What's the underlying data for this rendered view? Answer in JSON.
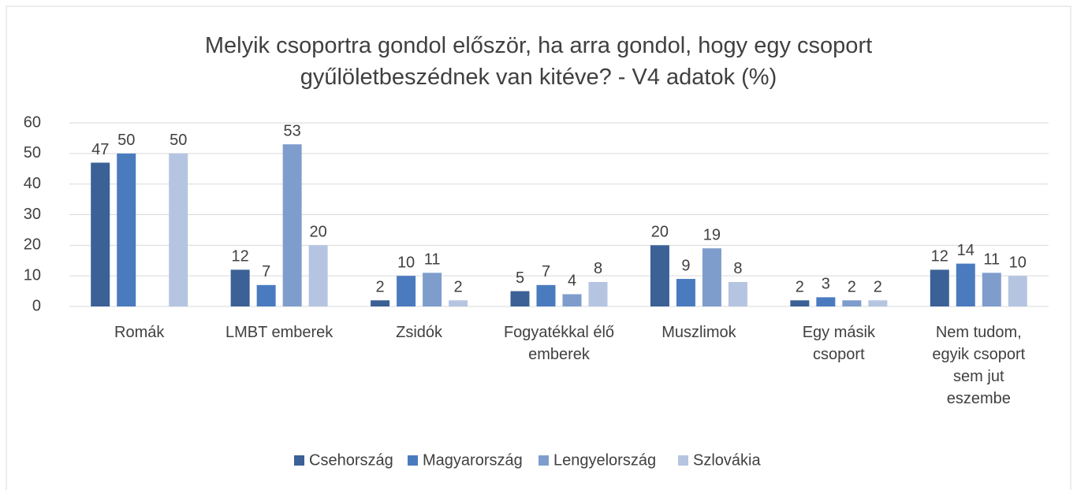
{
  "chart_data": {
    "type": "bar",
    "title": "Melyik csoportra gondol először, ha arra gondol, hogy egy csoport gyűlöletbeszédnek van kitéve? - V4 adatok (%)",
    "categories": [
      "Romák",
      "LMBT emberek",
      "Zsidók",
      "Fogyatékkal élő emberek",
      "Muszlimok",
      "Egy másik csoport",
      "Nem tudom, egyik csoport sem jut eszembe"
    ],
    "series": [
      {
        "name": "Csehország",
        "color": "#3b6196",
        "values": [
          47,
          12,
          2,
          5,
          20,
          2,
          12
        ]
      },
      {
        "name": "Magyarország",
        "color": "#4a7bbf",
        "values": [
          50,
          7,
          10,
          7,
          9,
          3,
          14
        ]
      },
      {
        "name": "Lengyelország",
        "color": "#7f9dcc",
        "values": [
          null,
          53,
          11,
          4,
          19,
          2,
          11
        ]
      },
      {
        "name": "Szlovákia",
        "color": "#b5c5e1",
        "values": [
          50,
          20,
          2,
          8,
          8,
          2,
          10
        ]
      }
    ],
    "ylim": [
      0,
      60
    ],
    "yticks": [
      0,
      10,
      20,
      30,
      40,
      50,
      60
    ],
    "grid": true,
    "legend": "bottom"
  }
}
